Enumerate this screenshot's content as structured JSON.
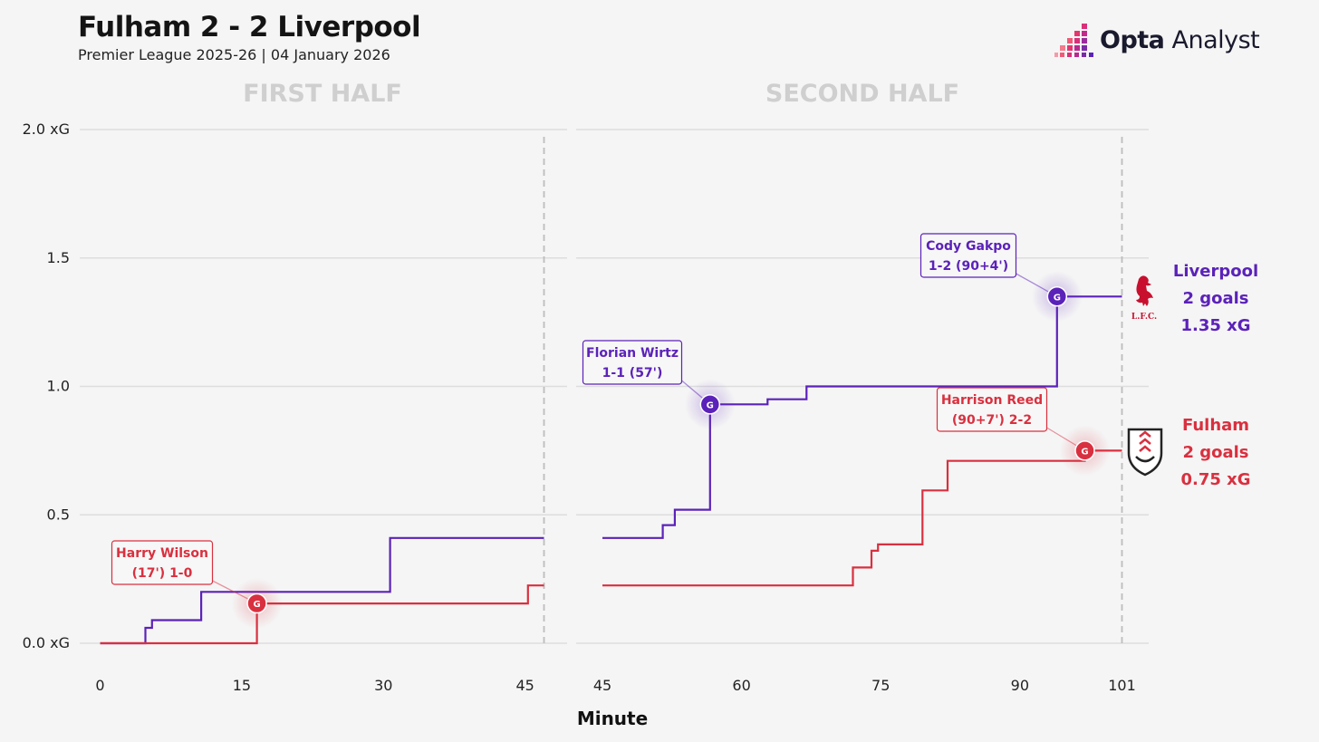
{
  "header": {
    "title": "Fulham 2 - 2 Liverpool",
    "subtitle": "Premier League 2025-26 | 04 January 2026",
    "brand_bold": "Opta",
    "brand_rest": " Analyst"
  },
  "colors": {
    "liverpool": "#5b22b9",
    "fulham": "#d9303f",
    "grid": "#dddddd",
    "half_title": "#cfcfcf"
  },
  "chart_data": {
    "type": "line",
    "step": true,
    "xlabel": "Minute",
    "ylim": [
      0,
      2.0
    ],
    "y_ticks": [
      {
        "value": 0,
        "label": "0.0 xG"
      },
      {
        "value": 0.5,
        "label": "0.5"
      },
      {
        "value": 1.0,
        "label": "1.0"
      },
      {
        "value": 1.5,
        "label": "1.5"
      },
      {
        "value": 2.0,
        "label": "2.0 xG"
      }
    ],
    "panels": [
      {
        "name": "first_half",
        "title": "FIRST HALF",
        "xlim": [
          0,
          47
        ],
        "x_ticks": [
          0,
          15,
          30,
          45
        ],
        "end_line": 47
      },
      {
        "name": "second_half",
        "title": "SECOND HALF",
        "xlim": [
          45,
          101
        ],
        "x_ticks": [
          45,
          60,
          75,
          90,
          101
        ],
        "end_line": 101
      }
    ],
    "series": [
      {
        "name": "Liverpool",
        "color": "#5b22b9",
        "first_half": [
          [
            0,
            0
          ],
          [
            4.8,
            0
          ],
          [
            4.8,
            0.06
          ],
          [
            5.5,
            0.06
          ],
          [
            5.5,
            0.09
          ],
          [
            10.7,
            0.09
          ],
          [
            10.7,
            0.2
          ],
          [
            30.7,
            0.2
          ],
          [
            30.7,
            0.41
          ],
          [
            47,
            0.41
          ]
        ],
        "second_half": [
          [
            45,
            0.41
          ],
          [
            51.5,
            0.41
          ],
          [
            51.5,
            0.46
          ],
          [
            52.8,
            0.46
          ],
          [
            52.8,
            0.52
          ],
          [
            56.6,
            0.52
          ],
          [
            56.6,
            0.93
          ],
          [
            62.8,
            0.93
          ],
          [
            62.8,
            0.95
          ],
          [
            67,
            0.95
          ],
          [
            67,
            1.0
          ],
          [
            94,
            1.0
          ],
          [
            94,
            1.35
          ],
          [
            101,
            1.35
          ]
        ]
      },
      {
        "name": "Fulham",
        "color": "#d9303f",
        "first_half": [
          [
            0,
            0
          ],
          [
            16.6,
            0
          ],
          [
            16.6,
            0.155
          ],
          [
            45.3,
            0.155
          ],
          [
            45.3,
            0.225
          ],
          [
            47,
            0.225
          ]
        ],
        "second_half": [
          [
            45,
            0.225
          ],
          [
            72,
            0.225
          ],
          [
            72,
            0.295
          ],
          [
            74,
            0.295
          ],
          [
            74,
            0.36
          ],
          [
            74.7,
            0.36
          ],
          [
            74.7,
            0.385
          ],
          [
            79.5,
            0.385
          ],
          [
            79.5,
            0.595
          ],
          [
            82.2,
            0.595
          ],
          [
            82.2,
            0.71
          ],
          [
            97,
            0.71
          ],
          [
            97,
            0.75
          ],
          [
            101,
            0.75
          ]
        ]
      }
    ],
    "goals": [
      {
        "team": "Fulham",
        "panel": 0,
        "minute": 16.6,
        "xg": 0.155,
        "marker": "G",
        "label_lines": [
          "Harry Wilson",
          "(17') 1-0"
        ]
      },
      {
        "team": "Liverpool",
        "panel": 1,
        "minute": 56.6,
        "xg": 0.93,
        "marker": "G",
        "label_lines": [
          "Florian Wirtz",
          "1-1 (57')"
        ]
      },
      {
        "team": "Liverpool",
        "panel": 1,
        "minute": 94,
        "xg": 1.35,
        "marker": "G",
        "label_lines": [
          "Cody Gakpo",
          "1-2 (90+4')"
        ]
      },
      {
        "team": "Fulham",
        "panel": 1,
        "minute": 97,
        "xg": 0.75,
        "marker": "G",
        "label_lines": [
          "Harrison Reed",
          "(90+7') 2-2"
        ]
      }
    ],
    "team_summaries": [
      {
        "team": "Liverpool",
        "lines": [
          "Liverpool",
          "2 goals",
          "1.35 xG"
        ],
        "crest_text": "L.F.C."
      },
      {
        "team": "Fulham",
        "lines": [
          "Fulham",
          "2 goals",
          "0.75 xG"
        ]
      }
    ]
  }
}
